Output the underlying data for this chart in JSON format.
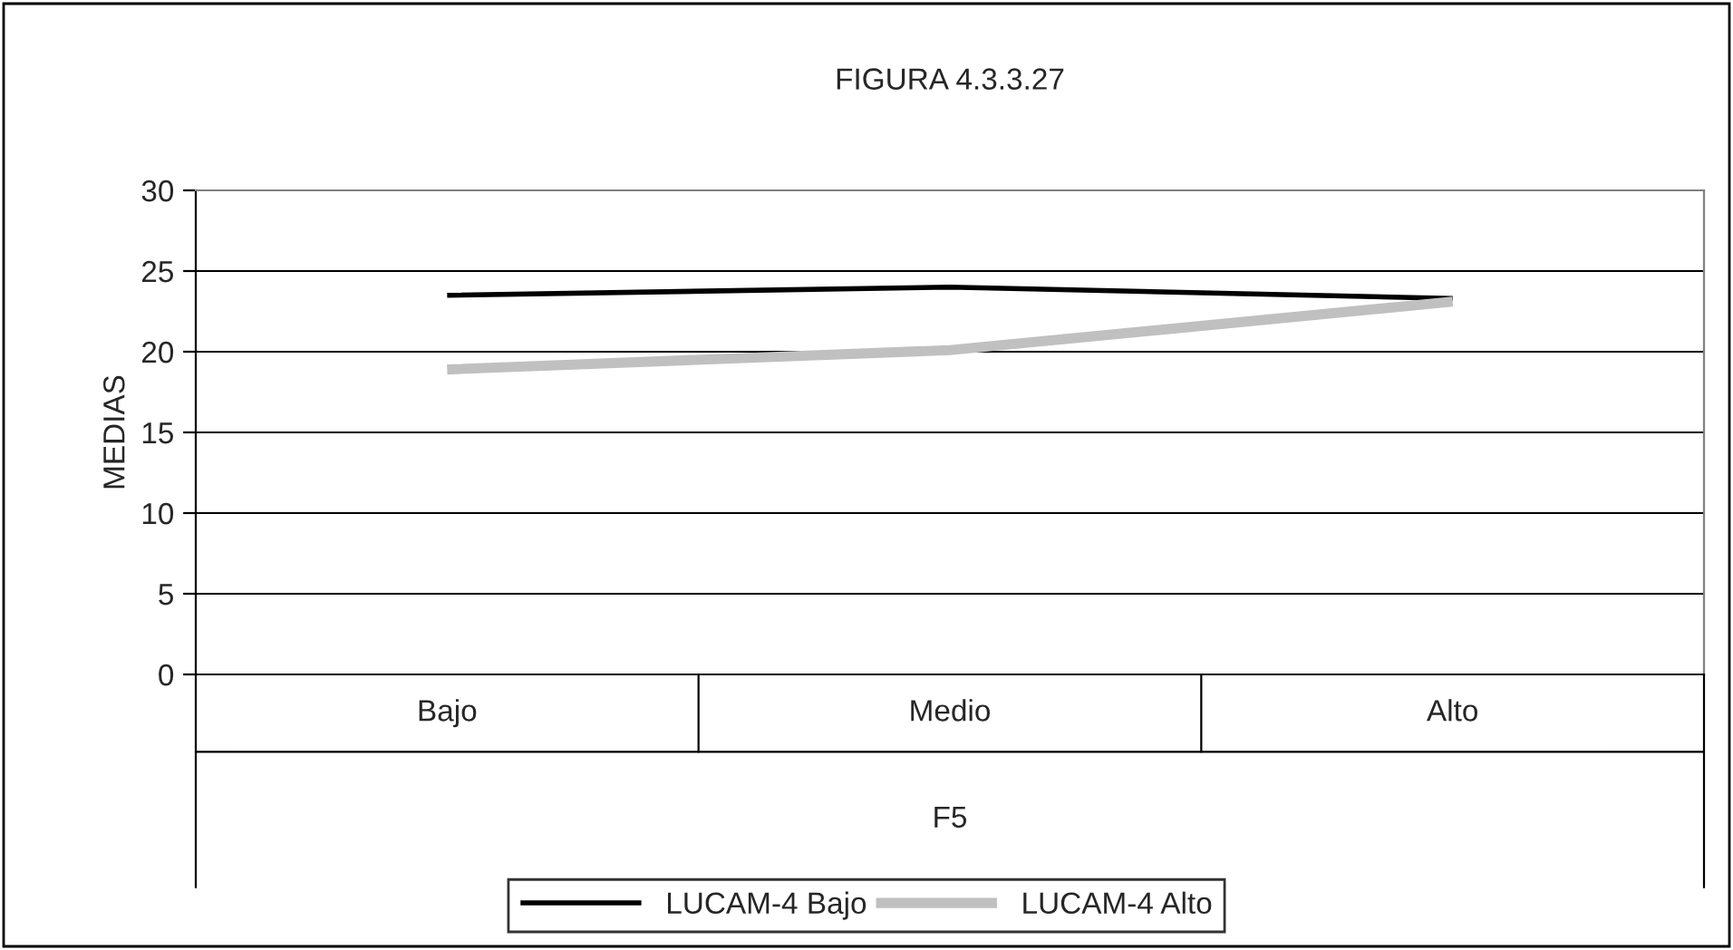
{
  "chart_data": {
    "type": "line",
    "title": "FIGURA 4.3.3.27",
    "xlabel": "F5",
    "ylabel": "MEDIAS",
    "categories": [
      "Bajo",
      "Medio",
      "Alto"
    ],
    "series": [
      {
        "name": "LUCAM-4 Bajo",
        "color": "#000000",
        "values": [
          23.5,
          24.0,
          23.3
        ]
      },
      {
        "name": "LUCAM-4 Alto",
        "color": "#c0c0c0",
        "values": [
          18.9,
          20.1,
          23.1
        ]
      }
    ],
    "ylim": [
      0,
      30
    ],
    "yticks": [
      0,
      5,
      10,
      15,
      20,
      25,
      30
    ],
    "grid": "y",
    "legend": "bottom",
    "marker": "none",
    "line_style": "solid"
  }
}
